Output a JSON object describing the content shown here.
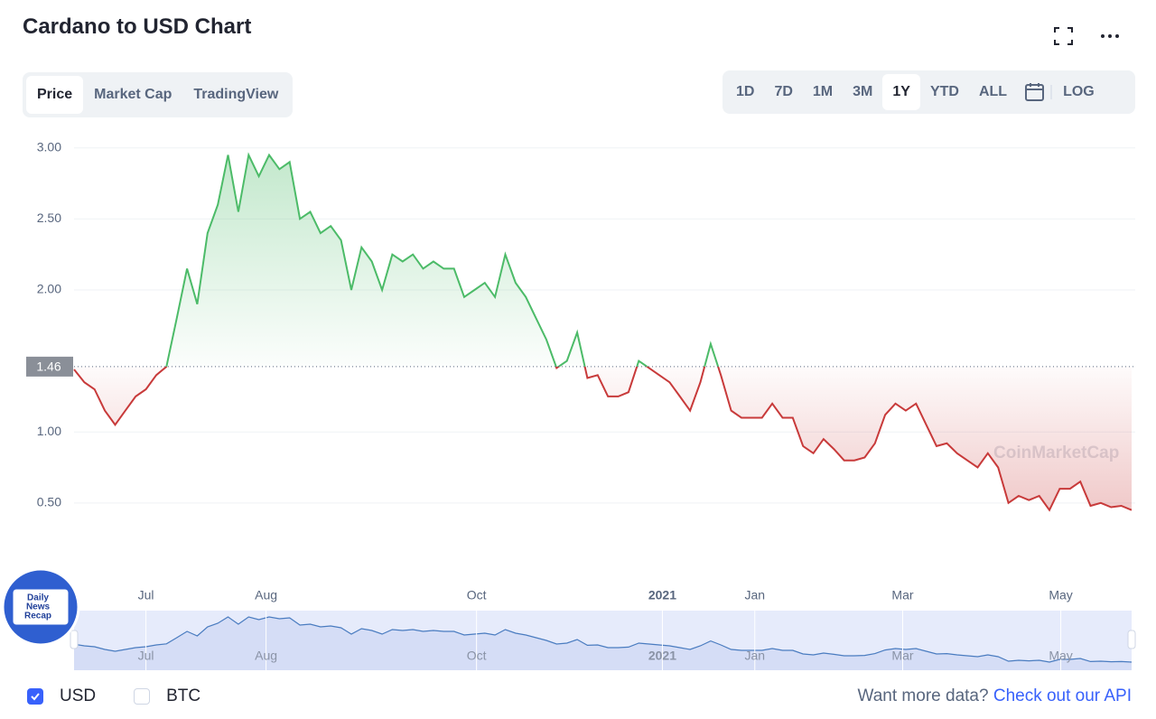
{
  "header": {
    "title": "Cardano to USD Chart"
  },
  "tabs": [
    "Price",
    "Market Cap",
    "TradingView"
  ],
  "active_tab": 0,
  "ranges": [
    "1D",
    "7D",
    "1M",
    "3M",
    "1Y",
    "YTD",
    "ALL"
  ],
  "active_range": 4,
  "log_button": "LOG",
  "chart_data": {
    "type": "line",
    "values": [
      1.44,
      1.35,
      1.3,
      1.15,
      1.05,
      1.15,
      1.25,
      1.3,
      1.4,
      1.46,
      1.8,
      2.15,
      1.9,
      2.4,
      2.6,
      2.95,
      2.55,
      2.95,
      2.8,
      2.95,
      2.85,
      2.9,
      2.5,
      2.55,
      2.4,
      2.45,
      2.35,
      2.0,
      2.3,
      2.2,
      2.0,
      2.25,
      2.2,
      2.25,
      2.15,
      2.2,
      2.15,
      2.15,
      1.95,
      2.0,
      2.05,
      1.95,
      2.25,
      2.05,
      1.95,
      1.8,
      1.65,
      1.45,
      1.5,
      1.7,
      1.38,
      1.4,
      1.25,
      1.25,
      1.28,
      1.5,
      1.45,
      1.4,
      1.35,
      1.25,
      1.15,
      1.35,
      1.62,
      1.4,
      1.15,
      1.1,
      1.1,
      1.1,
      1.2,
      1.1,
      1.1,
      0.9,
      0.85,
      0.95,
      0.88,
      0.8,
      0.8,
      0.82,
      0.92,
      1.12,
      1.2,
      1.15,
      1.2,
      1.05,
      0.9,
      0.92,
      0.85,
      0.8,
      0.75,
      0.85,
      0.75,
      0.5,
      0.55,
      0.52,
      0.55,
      0.45,
      0.6,
      0.6,
      0.65,
      0.48,
      0.5,
      0.47,
      0.48,
      0.45
    ],
    "colors": {
      "above": "#4cbb68",
      "below": "#c83a3a",
      "navigator": "#4a7cc0"
    },
    "baseline": 1.46,
    "xlim": [
      0,
      103
    ],
    "xticks": [
      {
        "value": 7,
        "label": "Jul"
      },
      {
        "value": 18.7,
        "label": "Aug"
      },
      {
        "value": 39.2,
        "label": "Oct"
      },
      {
        "value": 57.3,
        "label": "2021"
      },
      {
        "value": 66.3,
        "label": "Jan"
      },
      {
        "value": 80.7,
        "label": "Mar"
      },
      {
        "value": 96.1,
        "label": "May"
      }
    ],
    "ylim": [
      0.2,
      3.1
    ],
    "yticks": [
      {
        "value": 0.5,
        "label": "0.50"
      },
      {
        "value": 1,
        "label": "1.00"
      },
      {
        "value": 2,
        "label": "2.00"
      },
      {
        "value": 2.5,
        "label": "2.50"
      },
      {
        "value": 3,
        "label": "3.00"
      }
    ],
    "grid": true,
    "watermark": "CoinMarketCap"
  },
  "badge": [
    "Daily",
    "News",
    "Recap"
  ],
  "footer": {
    "currencies": [
      "USD",
      "BTC"
    ],
    "checked": 0,
    "prompt": "Want more data?",
    "link": "Check out our API"
  }
}
